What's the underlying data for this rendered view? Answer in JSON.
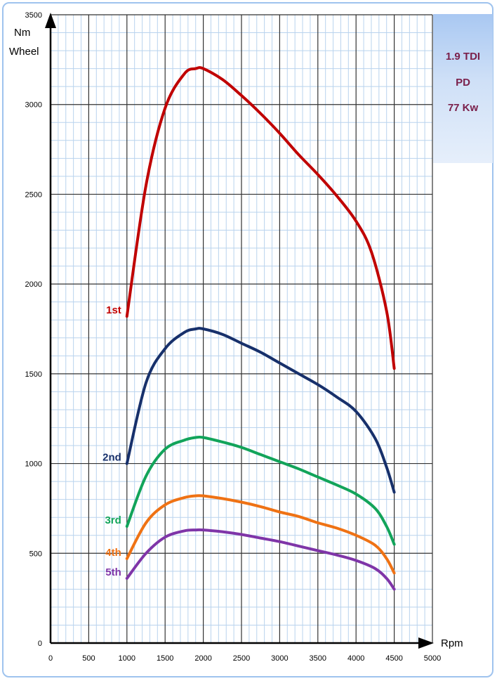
{
  "info": {
    "lines": [
      "1.9 TDI",
      "PD",
      "77 Kw"
    ],
    "color": "#7a1f4a"
  },
  "chart_data": {
    "type": "line",
    "title": "",
    "xlabel": "Rpm",
    "ylabel": [
      "Nm",
      "Wheel"
    ],
    "xlim": [
      0,
      5000
    ],
    "ylim": [
      0,
      3500
    ],
    "x_ticks": [
      "0",
      "500",
      "1000",
      "1500",
      "2000",
      "2500",
      "3000",
      "3500",
      "4000",
      "4500",
      "5000"
    ],
    "y_ticks": [
      "0",
      "500",
      "1000",
      "1500",
      "2000",
      "2500",
      "3000",
      "3500"
    ],
    "grid": true,
    "series": [
      {
        "name": "1st",
        "color": "#c00000",
        "x": [
          1000,
          1250,
          1500,
          1750,
          1900,
          2000,
          2250,
          2500,
          2750,
          3000,
          3250,
          3500,
          3750,
          4000,
          4200,
          4400,
          4500
        ],
        "y": [
          1820,
          2550,
          2980,
          3170,
          3200,
          3200,
          3140,
          3050,
          2950,
          2840,
          2720,
          2610,
          2490,
          2350,
          2180,
          1850,
          1530
        ]
      },
      {
        "name": "2nd",
        "color": "#17306b",
        "x": [
          1000,
          1250,
          1500,
          1750,
          1900,
          2000,
          2250,
          2500,
          2750,
          3000,
          3250,
          3500,
          3750,
          4000,
          4250,
          4400,
          4500
        ],
        "y": [
          1000,
          1450,
          1640,
          1730,
          1750,
          1750,
          1720,
          1670,
          1620,
          1560,
          1500,
          1440,
          1370,
          1290,
          1140,
          980,
          840
        ]
      },
      {
        "name": "3rd",
        "color": "#12a45a",
        "x": [
          1000,
          1250,
          1500,
          1750,
          1900,
          2000,
          2250,
          2500,
          2750,
          3000,
          3250,
          3500,
          3750,
          4000,
          4250,
          4400,
          4500
        ],
        "y": [
          650,
          930,
          1080,
          1130,
          1145,
          1145,
          1120,
          1090,
          1050,
          1010,
          970,
          925,
          880,
          830,
          750,
          650,
          550
        ]
      },
      {
        "name": "4th",
        "color": "#ef7214",
        "x": [
          1000,
          1250,
          1500,
          1750,
          1900,
          2000,
          2250,
          2500,
          2750,
          3000,
          3250,
          3500,
          3750,
          4000,
          4250,
          4400,
          4500
        ],
        "y": [
          470,
          670,
          770,
          810,
          820,
          820,
          805,
          785,
          760,
          730,
          705,
          670,
          640,
          600,
          545,
          470,
          390
        ]
      },
      {
        "name": "5th",
        "color": "#7f35a8",
        "x": [
          1000,
          1250,
          1500,
          1750,
          1900,
          2000,
          2250,
          2500,
          2750,
          3000,
          3250,
          3500,
          3750,
          4000,
          4250,
          4400,
          4500
        ],
        "y": [
          360,
          500,
          590,
          625,
          630,
          630,
          620,
          605,
          585,
          565,
          540,
          515,
          490,
          460,
          415,
          360,
          300
        ]
      }
    ]
  }
}
